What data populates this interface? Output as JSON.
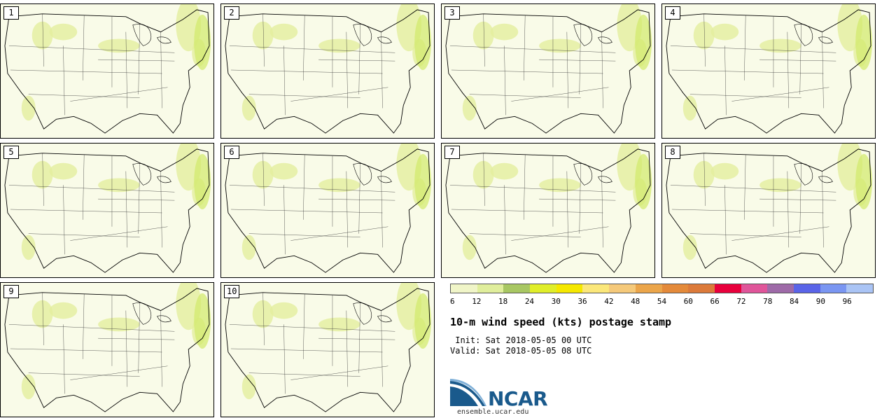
{
  "panels": [
    {
      "label": "1"
    },
    {
      "label": "2"
    },
    {
      "label": "3"
    },
    {
      "label": "4"
    },
    {
      "label": "5"
    },
    {
      "label": "6"
    },
    {
      "label": "7"
    },
    {
      "label": "8"
    },
    {
      "label": "9"
    },
    {
      "label": "10"
    }
  ],
  "colorbar": {
    "colors": [
      "#f0f5c8",
      "#e0ee9c",
      "#a8c763",
      "#e0ee2a",
      "#f5e800",
      "#fbe77a",
      "#f5c97a",
      "#eba54a",
      "#e48a3a",
      "#dc7a3a",
      "#e8003c",
      "#e0559a",
      "#9e6aa8",
      "#5a64e8",
      "#7a96f2",
      "#aac4f5"
    ],
    "tick_labels": [
      "6",
      "12",
      "18",
      "24",
      "30",
      "36",
      "42",
      "48",
      "54",
      "60",
      "66",
      "72",
      "78",
      "84",
      "90",
      "96"
    ]
  },
  "title": "10-m wind speed (kts) postage stamp",
  "init_text": " Init: Sat 2018-05-05 00 UTC",
  "valid_text": "Valid: Sat 2018-05-05 08 UTC",
  "logo": {
    "wordmark": "NCAR",
    "site": "ensemble.ucar.edu"
  }
}
